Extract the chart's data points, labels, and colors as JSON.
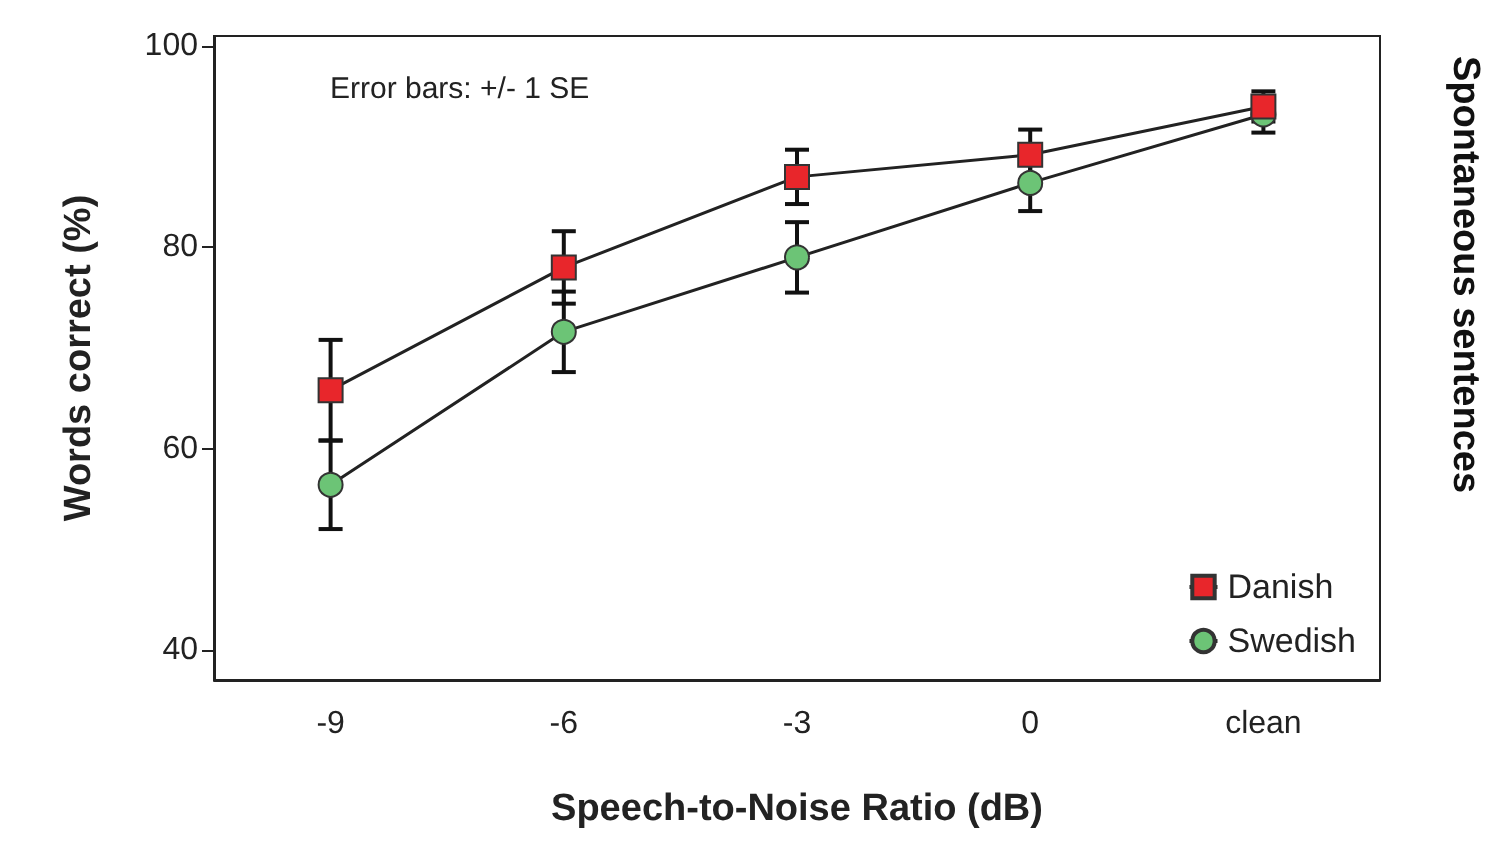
{
  "chart_data": {
    "type": "line",
    "xlabel": "Speech-to-Noise Ratio (dB)",
    "ylabel": "Words correct (%)",
    "annotations": [
      "Error bars: +/- 1 SE",
      "Spontaneous sentences"
    ],
    "categories": [
      "-9",
      "-6",
      "-3",
      "0",
      "clean"
    ],
    "ylim": [
      37,
      101
    ],
    "yticks": [
      40,
      60,
      80,
      100
    ],
    "grid": false,
    "legend": "bottom right",
    "line_style": "solid",
    "series": [
      {
        "name": "Danish",
        "color": "#e8262b",
        "marker": "square",
        "values": [
          65.8,
          78,
          87,
          89.2,
          94
        ],
        "errors": [
          5,
          3.6,
          2.7,
          2.5,
          1.5
        ]
      },
      {
        "name": "Swedish",
        "color": "#6cc476",
        "marker": "circle",
        "values": [
          56.4,
          71.6,
          79,
          86.4,
          93.2
        ],
        "errors": [
          4.4,
          4,
          3.5,
          2.8,
          1.8
        ]
      }
    ]
  }
}
